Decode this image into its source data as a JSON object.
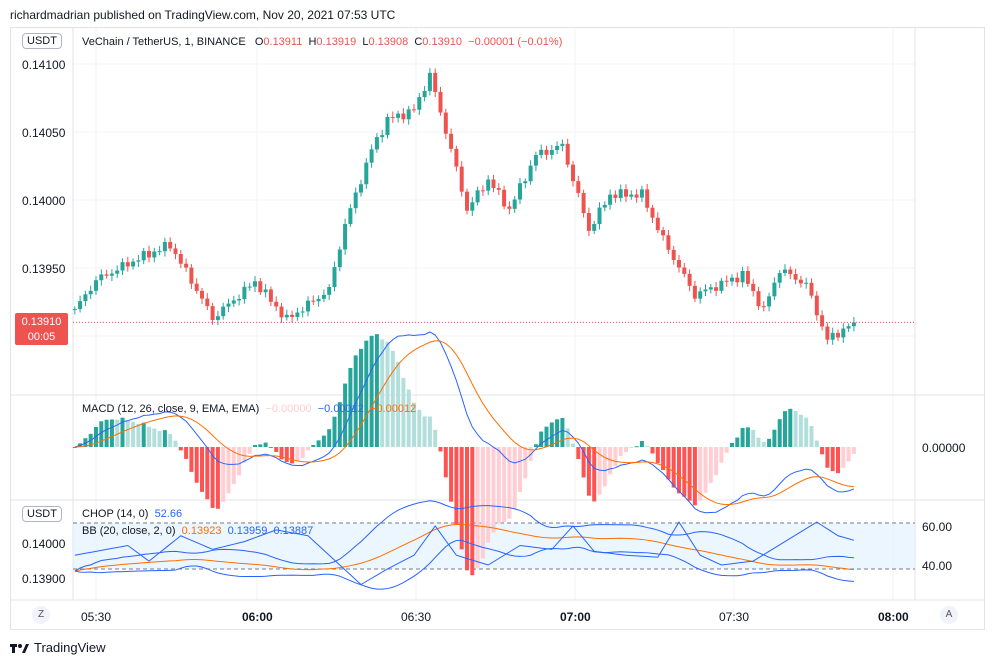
{
  "publish_line": "richardmadrian published on TradingView.com, Nov 20, 2021 07:53 UTC",
  "currency_badge": "USDT",
  "symbol": {
    "name": "VeChain / TetherUS, 1, BINANCE",
    "o_label": "O",
    "o": "0.13911",
    "h_label": "H",
    "h": "0.13919",
    "l_label": "L",
    "l": "0.13908",
    "c_label": "C",
    "c": "0.13910",
    "change": "−0.00001 (−0.01%)"
  },
  "price_axis": [
    "0.14100",
    "0.14050",
    "0.14000",
    "0.13950"
  ],
  "last_price": {
    "value": "0.13910",
    "countdown": "00:05"
  },
  "macd": {
    "label": "MACD (12, 26, close, 9, EMA, EMA)",
    "hist": "−0.00000",
    "macd": "−0.00012",
    "signal": "−0.00012",
    "axis": "0.00000"
  },
  "chop": {
    "label": "CHOP (14, 0)",
    "value": "52.66",
    "axis": [
      "60.00",
      "40.00"
    ]
  },
  "bb": {
    "label": "BB (20, close, 2, 0)",
    "basis": "0.13923",
    "upper": "0.13959",
    "lower": "0.13887",
    "axis": [
      "0.14000",
      "0.13900"
    ]
  },
  "time_axis": [
    "05:30",
    "06:00",
    "06:30",
    "07:00",
    "07:30",
    "08:00"
  ],
  "buttons": {
    "z": "Z",
    "a": "A"
  },
  "footer": "TradingView",
  "colors": {
    "up": "#26a69a",
    "down": "#ef5350",
    "blue": "#2962ff",
    "orange": "#ff6d00"
  },
  "chart_data": {
    "type": "candlestick",
    "interval_minutes": 1,
    "start": "05:26",
    "end": "07:53",
    "key_closes": [
      [
        -4,
        0.13919
      ],
      [
        0,
        0.13941
      ],
      [
        8,
        0.13957
      ],
      [
        14,
        0.13967
      ],
      [
        19,
        0.13934
      ],
      [
        22,
        0.13913
      ],
      [
        30,
        0.1394
      ],
      [
        36,
        0.13912
      ],
      [
        44,
        0.13934
      ],
      [
        47,
        0.13982
      ],
      [
        52,
        0.14037
      ],
      [
        55,
        0.14059
      ],
      [
        60,
        0.14066
      ],
      [
        63,
        0.14092
      ],
      [
        67,
        0.14037
      ],
      [
        70,
        0.13993
      ],
      [
        74,
        0.14015
      ],
      [
        78,
        0.13993
      ],
      [
        83,
        0.14033
      ],
      [
        88,
        0.1404
      ],
      [
        93,
        0.13978
      ],
      [
        97,
        0.14004
      ],
      [
        103,
        0.14004
      ],
      [
        107,
        0.13971
      ],
      [
        113,
        0.1393
      ],
      [
        122,
        0.13945
      ],
      [
        126,
        0.13919
      ],
      [
        129,
        0.13949
      ],
      [
        134,
        0.13938
      ],
      [
        138,
        0.13897
      ],
      [
        143,
        0.1391
      ]
    ],
    "chop_values": [
      [
        -4,
        45
      ],
      [
        6,
        50
      ],
      [
        10,
        42
      ],
      [
        16,
        55
      ],
      [
        22,
        48
      ],
      [
        28,
        52
      ],
      [
        34,
        58
      ],
      [
        40,
        55
      ],
      [
        46,
        40
      ],
      [
        50,
        30
      ],
      [
        55,
        38
      ],
      [
        60,
        45
      ],
      [
        64,
        60
      ],
      [
        68,
        45
      ],
      [
        74,
        40
      ],
      [
        80,
        50
      ],
      [
        86,
        48
      ],
      [
        90,
        60
      ],
      [
        94,
        47
      ],
      [
        100,
        45
      ],
      [
        106,
        44
      ],
      [
        110,
        62
      ],
      [
        114,
        45
      ],
      [
        118,
        40
      ],
      [
        124,
        42
      ],
      [
        130,
        52
      ],
      [
        136,
        62
      ],
      [
        140,
        55
      ],
      [
        143,
        52.66
      ]
    ]
  }
}
